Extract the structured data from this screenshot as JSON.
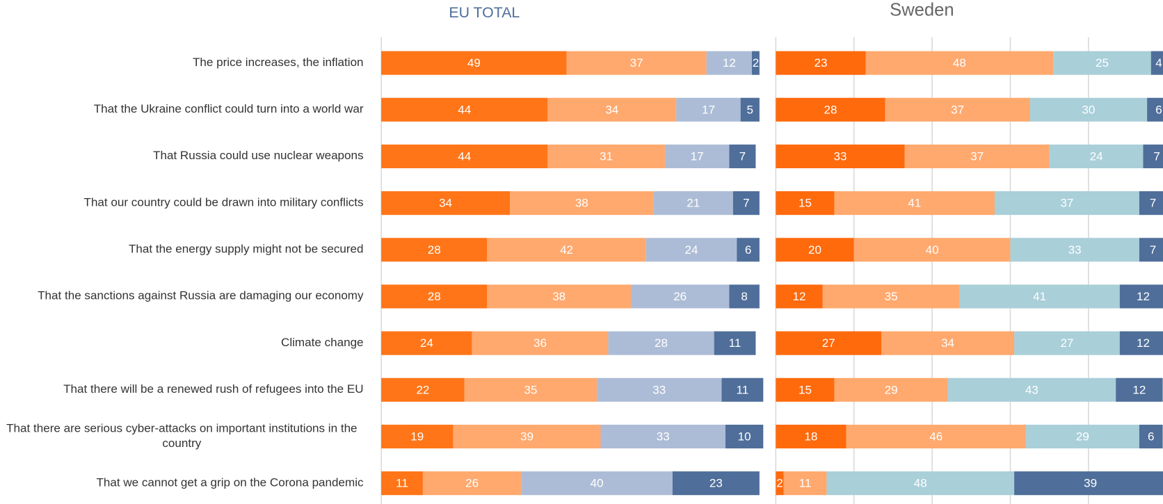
{
  "chart_data": [
    {
      "type": "stacked_barh",
      "title": "EU TOTAL",
      "categories": [
        "The price increases, the inflation",
        "That the Ukraine conflict could turn into a world war",
        "That Russia could use nuclear weapons",
        "That our country could be drawn into military conflicts",
        "That the energy supply might not be secured",
        "That the sanctions against Russia are damaging our economy",
        "Climate change",
        "That there will be a renewed rush of refugees into the EU",
        "That there are serious cyber-attacks on important institutions in the country",
        "That we cannot get a grip on the Corona pandemic"
      ],
      "xlim": [
        0,
        100
      ],
      "grid": false,
      "series": [
        {
          "color": "#ff7518",
          "values": [
            49,
            44,
            44,
            34,
            28,
            28,
            24,
            22,
            19,
            11
          ]
        },
        {
          "color": "#ffa96e",
          "values": [
            37,
            34,
            31,
            38,
            42,
            38,
            36,
            35,
            39,
            26
          ]
        },
        {
          "color": "#adbcd6",
          "values": [
            12,
            17,
            17,
            21,
            24,
            26,
            28,
            33,
            33,
            40
          ]
        },
        {
          "color": "#4f6e9a",
          "values": [
            2,
            5,
            7,
            7,
            6,
            8,
            11,
            11,
            10,
            23
          ]
        }
      ]
    },
    {
      "type": "stacked_barh",
      "title": "Sweden",
      "xlim": [
        0,
        100
      ],
      "xticks": [
        0,
        20,
        40,
        60,
        80,
        100
      ],
      "grid": true,
      "series": [
        {
          "color": "#ff6a0d",
          "values": [
            23,
            28,
            33,
            15,
            20,
            12,
            27,
            15,
            18,
            2
          ]
        },
        {
          "color": "#ffa96e",
          "values": [
            48,
            37,
            37,
            41,
            40,
            35,
            34,
            29,
            46,
            11
          ]
        },
        {
          "color": "#a9cfd9",
          "values": [
            25,
            30,
            24,
            37,
            33,
            41,
            27,
            43,
            29,
            48
          ]
        },
        {
          "color": "#4f6e9a",
          "values": [
            4,
            6,
            7,
            7,
            7,
            12,
            12,
            12,
            6,
            39
          ]
        }
      ]
    }
  ]
}
